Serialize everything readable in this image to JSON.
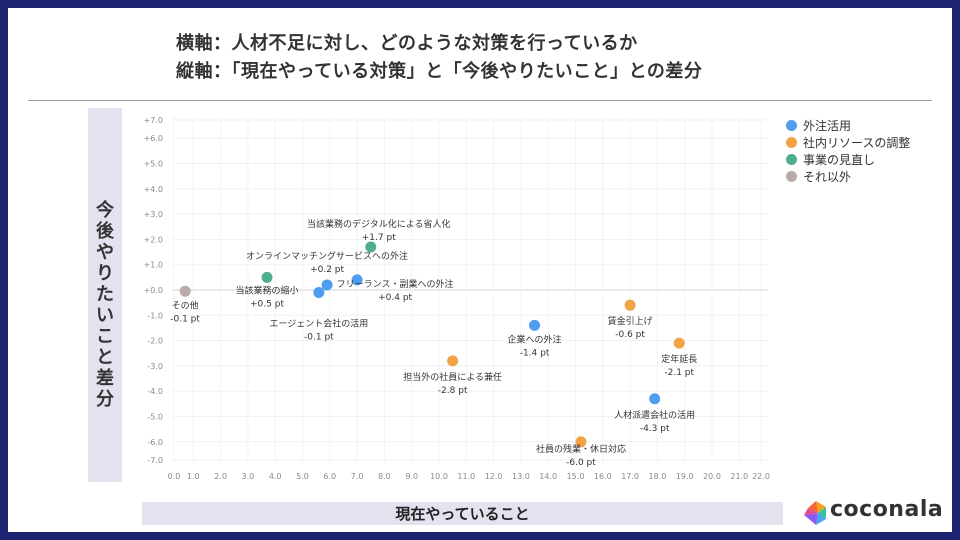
{
  "title": {
    "line1": "横軸：人材不足に対し、どのような対策を行っているか",
    "line2": "縦軸：「現在やっている対策」と「今後やりたいこと」との差分"
  },
  "brand": {
    "name": "coconala"
  },
  "colors": {
    "frame": "#1c2370",
    "外注活用": "#4f9df0",
    "社内リソースの調整": "#f2a444",
    "事業の見直し": "#4fae92",
    "それ以外": "#b8aca8"
  },
  "chart_data": {
    "type": "scatter",
    "title": "",
    "xlabel": "現在やっていること",
    "ylabel": "今後やりたいこと差分",
    "xlim": [
      0,
      22
    ],
    "ylim": [
      -7,
      7
    ],
    "grid": true,
    "legend_position": "right",
    "x_ticks": [
      "0.0",
      "1.0",
      "2.0",
      "3.0",
      "4.0",
      "5.0",
      "6.0",
      "7.0",
      "8.0",
      "9.0",
      "10.0",
      "11.0",
      "12.0",
      "13.0",
      "14.0",
      "15.0",
      "16.0",
      "17.0",
      "18.0",
      "19.0",
      "20.0",
      "21.0",
      "22.0"
    ],
    "y_ticks": [
      "+7.0",
      "+6.0",
      "+5.0",
      "+4.0",
      "+3.0",
      "+2.0",
      "+1.0",
      "+0.0",
      "-1.0",
      "-2.0",
      "-3.0",
      "-4.0",
      "-5.0",
      "-6.0",
      "-7.0"
    ],
    "legend": [
      "外注活用",
      "社内リソースの調整",
      "事業の見直し",
      "それ以外"
    ],
    "points": [
      {
        "name": "その他",
        "value_label": "-0.1 pt",
        "group": "それ以外",
        "x": 0.7,
        "y": -0.05
      },
      {
        "name": "当該業務の縮小",
        "value_label": "+0.5 pt",
        "group": "事業の見直し",
        "x": 3.7,
        "y": 0.5
      },
      {
        "name": "エージェント会社の活用",
        "value_label": "-0.1 pt",
        "group": "外注活用",
        "x": 5.6,
        "y": -0.1
      },
      {
        "name": "オンラインマッチングサービスへの外注",
        "value_label": "+0.2 pt",
        "group": "外注活用",
        "x": 5.9,
        "y": 0.2
      },
      {
        "name": "フリーランス・副業への外注",
        "value_label": "+0.4 pt",
        "group": "外注活用",
        "x": 7.0,
        "y": 0.4
      },
      {
        "name": "当該業務のデジタル化による省人化",
        "value_label": "+1.7 pt",
        "group": "事業の見直し",
        "x": 7.5,
        "y": 1.7
      },
      {
        "name": "担当外の社員による兼任",
        "value_label": "-2.8 pt",
        "group": "社内リソースの調整",
        "x": 10.5,
        "y": -2.8
      },
      {
        "name": "企業への外注",
        "value_label": "-1.4 pt",
        "group": "外注活用",
        "x": 13.5,
        "y": -1.4
      },
      {
        "name": "社員の残業・休日対応",
        "value_label": "-6.0 pt",
        "group": "社内リソースの調整",
        "x": 15.2,
        "y": -6.0
      },
      {
        "name": "賃金引上げ",
        "value_label": "-0.6 pt",
        "group": "社内リソースの調整",
        "x": 17.0,
        "y": -0.6
      },
      {
        "name": "人材派遣会社の活用",
        "value_label": "-4.3 pt",
        "group": "外注活用",
        "x": 17.9,
        "y": -4.3
      },
      {
        "name": "定年延長",
        "value_label": "-2.1 pt",
        "group": "社内リソースの調整",
        "x": 18.8,
        "y": -2.1
      }
    ]
  }
}
